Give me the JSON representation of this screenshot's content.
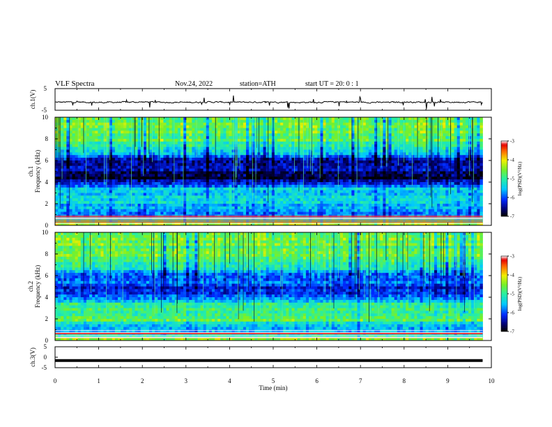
{
  "header": {
    "title": "VLF  Spectra",
    "date": "Nov.24, 2022",
    "station": "station=ATH",
    "start": "start  UT  =   20: 0  : 1"
  },
  "chart_data": [
    {
      "type": "line",
      "panel": "ch1-waveform",
      "ylabel": "ch.1(V)",
      "ylim": [
        -5,
        5
      ],
      "y_ticks": [
        "5",
        "-5"
      ],
      "x": [
        0,
        0.5,
        1,
        1.5,
        2,
        2.5,
        3,
        3.5,
        4,
        4.5,
        5,
        5.5,
        6,
        6.5,
        7,
        7.5,
        8,
        8.5,
        9,
        9.5,
        9.8
      ],
      "y": [
        -1.3,
        -1.2,
        -1.4,
        -1.3,
        -1.2,
        -1.3,
        -1.4,
        -1.2,
        -1.3,
        -1.3,
        -1.2,
        -1.4,
        -1.3,
        -1.2,
        -1.3,
        -1.4,
        -1.2,
        -1.3,
        -1.3,
        -1.2,
        -1.3
      ],
      "color": "#000000"
    },
    {
      "type": "heatmap",
      "panel": "ch1-spectrogram",
      "ylabel": "ch.1\nFrequency  (kHz)",
      "ylim": [
        0,
        10
      ],
      "y_ticks": [
        "0",
        "2",
        "4",
        "6",
        "8",
        "10"
      ],
      "xlim": [
        0,
        10
      ],
      "data_extent_min": 9.8,
      "freq_kHz": [
        0,
        0.5,
        1,
        1.5,
        2,
        2.5,
        3,
        3.5,
        4,
        4.5,
        5,
        5.5,
        6,
        6.5,
        7,
        7.5,
        8,
        8.5,
        9,
        9.5,
        10
      ],
      "log_psd_profile": [
        -4.2,
        -5.0,
        -5.9,
        -5.6,
        -5.4,
        -5.5,
        -5.3,
        -5.6,
        -6.4,
        -6.9,
        -6.5,
        -6.2,
        -6.7,
        -5.6,
        -5.2,
        -5.0,
        -4.7,
        -4.6,
        -4.6,
        -4.6,
        -4.7
      ],
      "colorbar": {
        "label": "log(PSD)(V²/Hz)",
        "ticks": [
          "-3",
          "-4",
          "-5",
          "-6",
          "-7"
        ],
        "range": [
          -7,
          -3
        ]
      }
    },
    {
      "type": "heatmap",
      "panel": "ch2-spectrogram",
      "ylabel": "ch.2\nFrequency  (kHz)",
      "ylim": [
        0,
        10
      ],
      "y_ticks": [
        "0",
        "2",
        "4",
        "6",
        "8",
        "10"
      ],
      "xlim": [
        0,
        10
      ],
      "data_extent_min": 9.8,
      "freq_kHz": [
        0,
        0.5,
        1,
        1.5,
        2,
        2.5,
        3,
        3.5,
        4,
        4.5,
        5,
        5.5,
        6,
        6.5,
        7,
        7.5,
        8,
        8.5,
        9,
        9.5,
        10
      ],
      "log_psd_profile": [
        -4.4,
        -5.2,
        -5.6,
        -5.3,
        -4.6,
        -4.9,
        -5.0,
        -5.2,
        -5.9,
        -6.3,
        -6.1,
        -5.9,
        -6.1,
        -5.4,
        -5.1,
        -4.9,
        -4.7,
        -4.7,
        -4.6,
        -4.7,
        -4.8
      ],
      "colorbar": {
        "label": "log(PSD)(V²/Hz)",
        "ticks": [
          "-3",
          "-4",
          "-5",
          "-6",
          "-7"
        ],
        "range": [
          -7,
          -3
        ]
      }
    },
    {
      "type": "line",
      "panel": "ch3-waveform",
      "ylabel": "ch.3(V)",
      "ylim": [
        -5,
        5
      ],
      "y_ticks": [
        "5",
        "0",
        "-5"
      ],
      "x": [
        0,
        9.8
      ],
      "y": [
        0,
        0
      ],
      "color": "#000000"
    }
  ],
  "x_axis": {
    "label": "Time  (min)",
    "ticks": [
      "0",
      "1",
      "2",
      "3",
      "4",
      "5",
      "6",
      "7",
      "8",
      "9",
      "10"
    ],
    "xlim": [
      0,
      10
    ]
  }
}
